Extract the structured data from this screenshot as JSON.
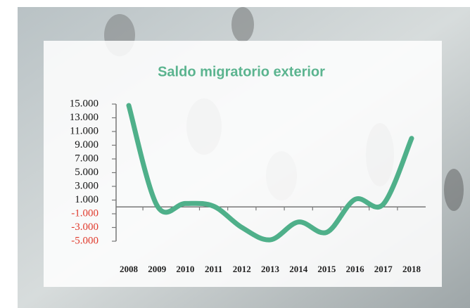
{
  "chart_data": {
    "type": "line",
    "title": "Saldo migratorio exterior",
    "categories": [
      "2008",
      "2009",
      "2010",
      "2011",
      "2012",
      "2013",
      "2014",
      "2015",
      "2016",
      "2017",
      "2018"
    ],
    "values": [
      14800,
      200,
      500,
      100,
      -3000,
      -4800,
      -2200,
      -3700,
      1100,
      400,
      10000
    ],
    "color": "#4fb08a",
    "title_color": "#5bb48f",
    "tick_color": "#111111",
    "negative_tick_color": "#e0392b",
    "ylim": [
      -5000,
      15000
    ],
    "yticks": [
      {
        "value": 15000,
        "label": "15.000"
      },
      {
        "value": 13000,
        "label": "13.000"
      },
      {
        "value": 11000,
        "label": "11.000"
      },
      {
        "value": 9000,
        "label": "9.000"
      },
      {
        "value": 7000,
        "label": "7.000"
      },
      {
        "value": 5000,
        "label": "5.000"
      },
      {
        "value": 3000,
        "label": "3.000"
      },
      {
        "value": 1000,
        "label": "1.000"
      },
      {
        "value": -1000,
        "label": "-1.000"
      },
      {
        "value": -3000,
        "label": "-3.000"
      },
      {
        "value": -5000,
        "label": "-5.000"
      }
    ],
    "grid": false
  }
}
